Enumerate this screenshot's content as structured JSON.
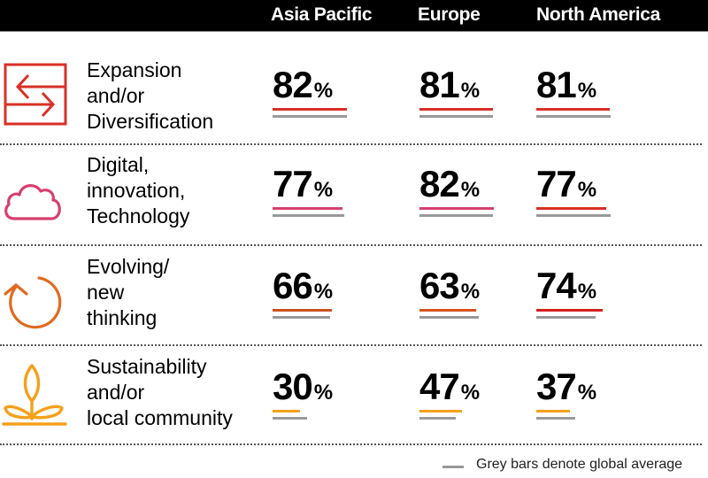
{
  "chart_data": {
    "type": "table",
    "title": "",
    "columns": [
      "Asia Pacific",
      "Europe",
      "North America"
    ],
    "rows": [
      {
        "label_lines": [
          "Expansion",
          "and/or",
          "Diversification"
        ],
        "icon": "arrows-exchange-icon",
        "color": "#d93025",
        "values": [
          82,
          81,
          81
        ],
        "bar_colors": [
          "#d93025",
          "#d93025",
          "#d93025"
        ],
        "global_average": [
          82,
          81,
          82
        ]
      },
      {
        "label_lines": [
          "Digital,",
          "innovation,",
          "Technology"
        ],
        "icon": "cloud-icon",
        "color": "#d6406e",
        "values": [
          77,
          82,
          77
        ],
        "bar_colors": [
          "#d6406e",
          "#d6406e",
          "#d93025"
        ],
        "global_average": [
          79,
          81,
          82
        ]
      },
      {
        "label_lines": [
          "Evolving/",
          "new",
          "thinking"
        ],
        "icon": "refresh-arrow-icon",
        "color": "#e06a1f",
        "values": [
          66,
          63,
          74
        ],
        "bar_colors": [
          "#c9501c",
          "#d4551e",
          "#d62020"
        ],
        "global_average": [
          64,
          66,
          66
        ]
      },
      {
        "label_lines": [
          "Sustainability",
          "and/or",
          "local community"
        ],
        "icon": "sprout-icon",
        "color": "#f5a01a",
        "values": [
          30,
          47,
          37
        ],
        "bar_colors": [
          "#f5a01a",
          "#f5a01a",
          "#f5a01a"
        ],
        "global_average": [
          38,
          40,
          43
        ]
      }
    ],
    "value_suffix": "%",
    "legend": {
      "text": "Grey bars denote global average",
      "color": "#999999",
      "placement": "bottom-right"
    }
  }
}
